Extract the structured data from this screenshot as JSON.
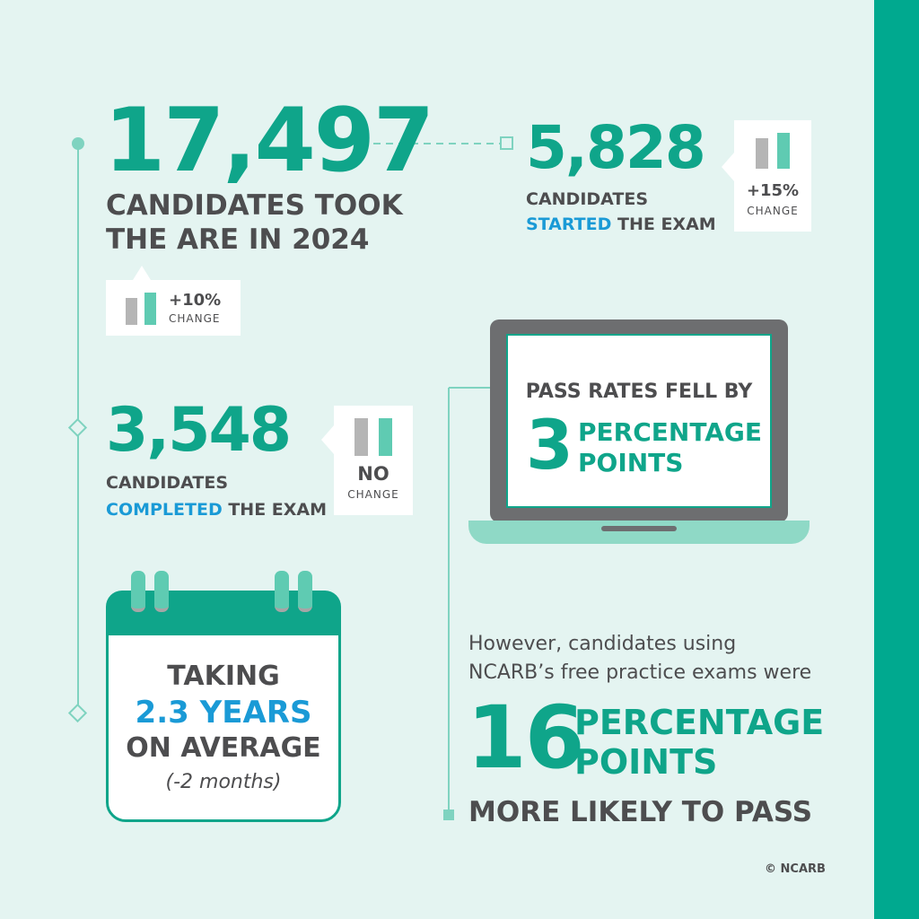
{
  "stat_total": {
    "number": "17,497",
    "line1": "CANDIDATES TOOK",
    "line2": "THE ARE IN 2024",
    "change_pct": "+10%",
    "change_label": "CHANGE"
  },
  "stat_started": {
    "number": "5,828",
    "line1": "CANDIDATES",
    "highlight": "STARTED",
    "rest": " THE EXAM",
    "change_pct": "+15%",
    "change_label": "CHANGE"
  },
  "stat_completed": {
    "number": "3,548",
    "line1": "CANDIDATES",
    "highlight": "COMPLETED",
    "rest": " THE EXAM",
    "change_pct": "NO",
    "change_label": "CHANGE"
  },
  "pass_rates": {
    "heading": "PASS RATES FELL BY",
    "number": "3",
    "line1": "PERCENTAGE",
    "line2": "POINTS"
  },
  "duration": {
    "line1": "TAKING",
    "highlight": "2.3 YEARS",
    "line3": "ON AVERAGE",
    "note": "(-2 months)"
  },
  "practice": {
    "line1": "However, candidates using",
    "line2": "NCARB’s free practice exams were",
    "number": "16",
    "pp1": "PERCENTAGE",
    "pp2": "POINTS",
    "footer": "MORE LIKELY TO PASS"
  },
  "copyright": "© NCARB",
  "colors": {
    "background": "#e4f4f1",
    "accent_green": "#0fa58a",
    "highlight_blue": "#1a9ad6",
    "text_gray": "#4d4d4f",
    "side_bar": "#00a98f"
  }
}
